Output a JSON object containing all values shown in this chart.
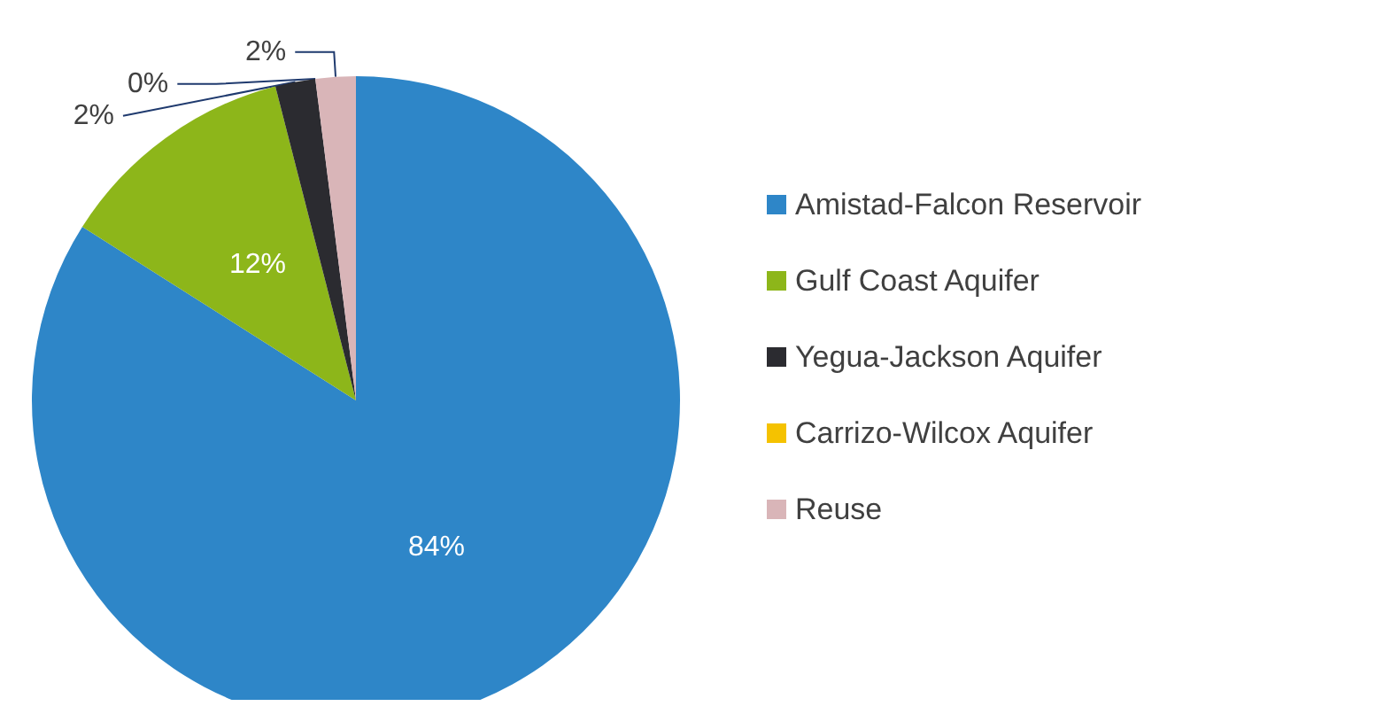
{
  "chart_data": {
    "type": "pie",
    "categories": [
      "Amistad-Falcon Reservoir",
      "Gulf Coast Aquifer",
      "Yegua-Jackson Aquifer",
      "Carrizo-Wilcox Aquifer",
      "Reuse"
    ],
    "values": [
      84,
      12,
      2,
      0,
      2
    ],
    "colors": [
      "#2e86c8",
      "#8db61a",
      "#2b2b30",
      "#f5c200",
      "#d9b5b8"
    ],
    "value_labels": [
      "84%",
      "12%",
      "2%",
      "0%",
      "2%"
    ],
    "legend": "right"
  }
}
